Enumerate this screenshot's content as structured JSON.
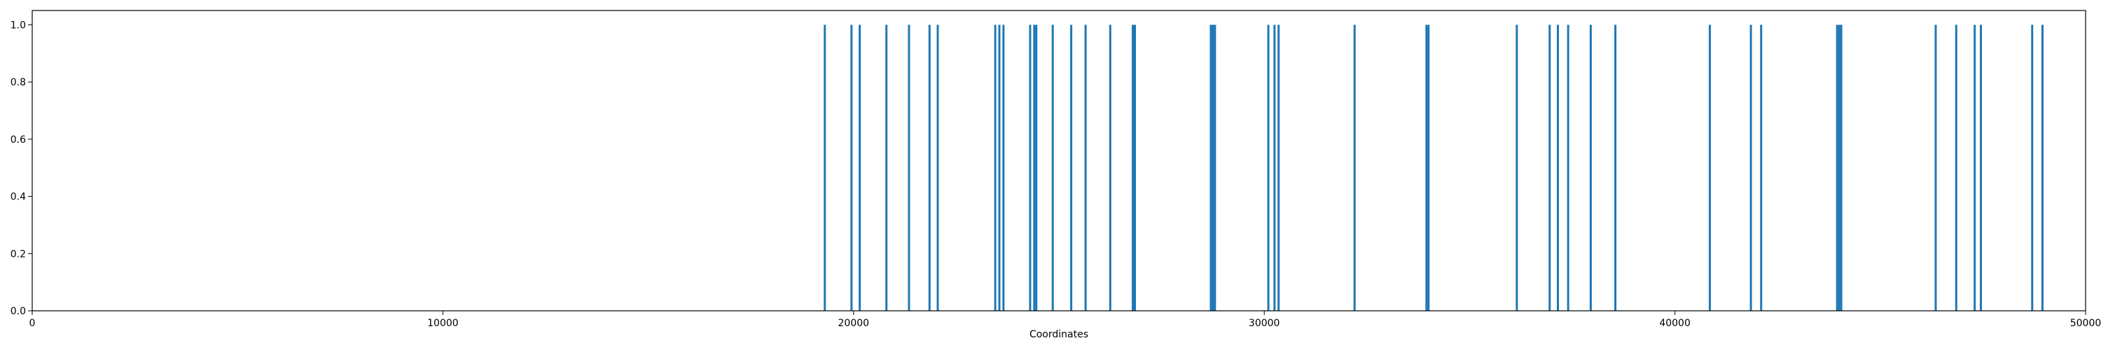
{
  "chart_data": {
    "type": "bar",
    "title": "",
    "xlabel": "Coordinates",
    "ylabel": "",
    "xlim": [
      0,
      50000
    ],
    "ylim": [
      0,
      1.05
    ],
    "x_ticks": [
      0,
      10000,
      20000,
      30000,
      40000,
      50000
    ],
    "x_tick_labels": [
      "0",
      "10000",
      "20000",
      "30000",
      "40000",
      "50000"
    ],
    "y_ticks": [
      0.0,
      0.2,
      0.4,
      0.6,
      0.8,
      1.0
    ],
    "y_tick_labels": [
      "0.0",
      "0.2",
      "0.4",
      "0.6",
      "0.8",
      "1.0"
    ],
    "grid": false,
    "legend": "none",
    "color": "#1f77b4",
    "x": [
      19300,
      19950,
      20150,
      20800,
      21350,
      21850,
      22050,
      23450,
      23550,
      23650,
      24300,
      24400,
      24450,
      24850,
      25300,
      25650,
      26250,
      26800,
      26850,
      28700,
      28750,
      28800,
      30100,
      30250,
      30350,
      32200,
      33950,
      34000,
      36150,
      36950,
      37150,
      37400,
      37950,
      38550,
      40850,
      41850,
      42100,
      43950,
      44000,
      44050,
      46350,
      46850,
      47300,
      47450,
      48700,
      48950
    ],
    "values": [
      1,
      1,
      1,
      1,
      1,
      1,
      1,
      1,
      1,
      1,
      1,
      1,
      1,
      1,
      1,
      1,
      1,
      1,
      1,
      1,
      1,
      1,
      1,
      1,
      1,
      1,
      1,
      1,
      1,
      1,
      1,
      1,
      1,
      1,
      1,
      1,
      1,
      1,
      1,
      1,
      1,
      1,
      1,
      1,
      1,
      1
    ]
  }
}
